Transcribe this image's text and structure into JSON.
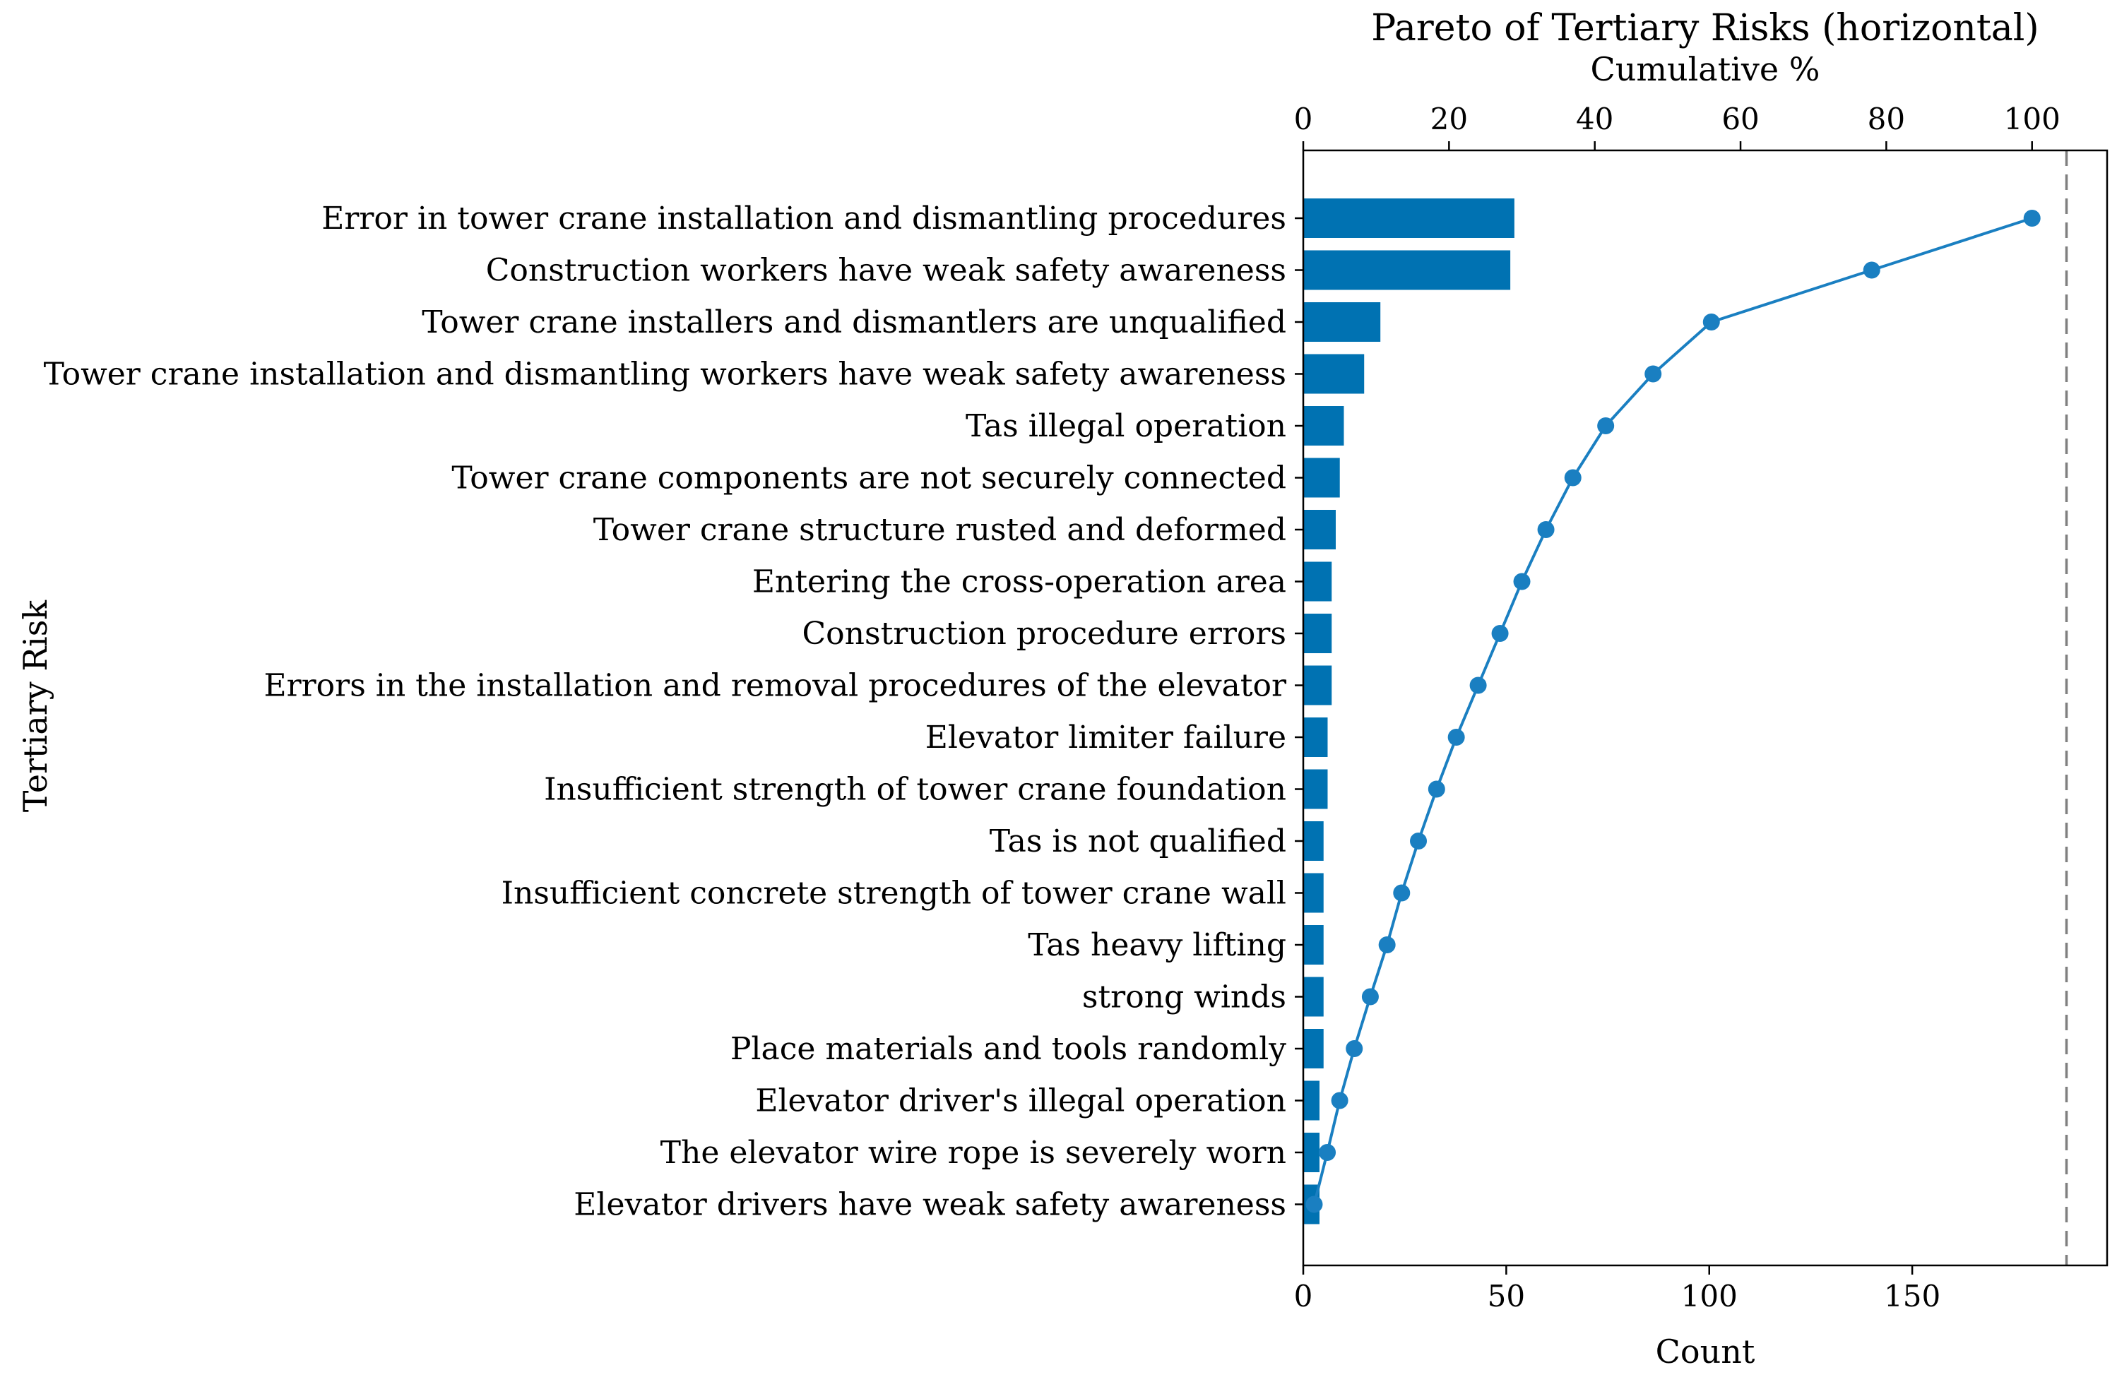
{
  "chart_data": {
    "type": "bar",
    "orientation": "horizontal",
    "title": "Pareto of Tertiary Risks (horizontal)",
    "xlabel": "Count",
    "ylabel": "Tertiary Risk",
    "x2label": "Cumulative %",
    "categories": [
      "Error in tower crane installation and dismantling procedures",
      "Construction workers have weak safety awareness",
      "Tower crane installers and dismantlers are unqualified",
      "Tower crane installation and dismantling workers have weak safety awareness",
      "Tas illegal operation",
      "Tower crane components are not securely connected",
      "Tower crane structure rusted and deformed",
      "Entering the cross-operation area",
      "Construction procedure errors",
      "Errors in the installation and removal procedures of the elevator",
      "Elevator limiter failure",
      "Insufficient strength of tower crane foundation",
      "Tas is not qualified",
      "Insufficient concrete strength of tower crane wall",
      "Tas heavy lifting",
      "strong winds",
      "Place materials and tools randomly",
      "Elevator driver's illegal operation",
      "The elevator wire rope is severely worn",
      "Elevator drivers have weak safety awareness"
    ],
    "series": [
      {
        "values": [
          52,
          51,
          19,
          15,
          10,
          9,
          8,
          7,
          7,
          7,
          6,
          6,
          5,
          5,
          5,
          5,
          5,
          4,
          4,
          4
        ]
      },
      {
        "axis": "top",
        "values": [
          100,
          78,
          56,
          48,
          41.5,
          37,
          33.3,
          30,
          27,
          24,
          21,
          18.3,
          15.8,
          13.5,
          11.5,
          9.2,
          7,
          5,
          3.3,
          1.5
        ]
      }
    ],
    "xlim": [
      0,
      198
    ],
    "x2lim": [
      0,
      110.3
    ],
    "xticks": [
      "0",
      "50",
      "100",
      "150"
    ],
    "x2ticks": [
      "0",
      "20",
      "40",
      "60",
      "80",
      "100"
    ],
    "reference_line": {
      "style": "dashed",
      "color": "#7f7f7f",
      "x": 188
    },
    "colors": {
      "bars": "#0072b2",
      "cumulative": "#1a7fc1"
    },
    "grid": false,
    "legend": "none"
  }
}
